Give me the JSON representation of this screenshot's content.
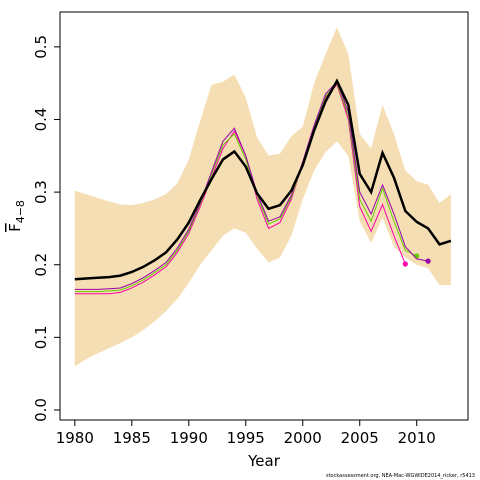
{
  "chart_data": {
    "type": "line",
    "xlabel": "Year",
    "ylabel": "F",
    "ylabel_sub": "4−8",
    "footnote": "stockassessment.org, NEA-Mac-WGWIDE2014_ricker, r5413",
    "x": [
      1980,
      1981,
      1982,
      1983,
      1984,
      1985,
      1986,
      1987,
      1988,
      1989,
      1990,
      1991,
      1992,
      1993,
      1994,
      1995,
      1996,
      1997,
      1998,
      1999,
      2000,
      2001,
      2002,
      2003,
      2004,
      2005,
      2006,
      2007,
      2008,
      2009,
      2010,
      2011,
      2012,
      2013
    ],
    "band_color": "#f5deb3",
    "band_upper": [
      0.302,
      0.297,
      0.292,
      0.287,
      0.283,
      0.282,
      0.285,
      0.29,
      0.297,
      0.312,
      0.345,
      0.398,
      0.448,
      0.452,
      0.462,
      0.43,
      0.375,
      0.35,
      0.353,
      0.377,
      0.39,
      0.45,
      0.49,
      0.527,
      0.49,
      0.38,
      0.36,
      0.42,
      0.38,
      0.33,
      0.315,
      0.31,
      0.285,
      0.297
    ],
    "band_lower": [
      0.06,
      0.07,
      0.078,
      0.085,
      0.092,
      0.1,
      0.11,
      0.122,
      0.136,
      0.153,
      0.175,
      0.2,
      0.22,
      0.24,
      0.25,
      0.244,
      0.222,
      0.203,
      0.21,
      0.24,
      0.29,
      0.33,
      0.355,
      0.37,
      0.35,
      0.26,
      0.23,
      0.265,
      0.225,
      0.21,
      0.2,
      0.195,
      0.172,
      0.172
    ],
    "series": [
      {
        "color": "#ff00aa",
        "values": [
          0.16,
          0.16,
          0.16,
          0.16,
          0.162,
          0.168,
          0.176,
          0.186,
          0.197,
          0.217,
          0.243,
          0.28,
          0.32,
          0.36,
          0.384,
          0.35,
          0.29,
          0.25,
          0.258,
          0.29,
          0.34,
          0.39,
          0.43,
          0.448,
          0.4,
          0.28,
          0.246,
          0.283,
          0.24,
          0.201,
          null,
          null,
          null,
          null
        ]
      },
      {
        "color": "#66cc00",
        "values": [
          0.163,
          0.163,
          0.163,
          0.164,
          0.165,
          0.171,
          0.179,
          0.189,
          0.2,
          0.22,
          0.246,
          0.283,
          0.325,
          0.365,
          0.38,
          0.345,
          0.295,
          0.256,
          0.263,
          0.293,
          0.34,
          0.39,
          0.432,
          0.45,
          0.405,
          0.29,
          0.26,
          0.305,
          0.26,
          0.22,
          0.212,
          null,
          null,
          null
        ]
      },
      {
        "color": "#9900aa",
        "values": [
          0.166,
          0.166,
          0.166,
          0.167,
          0.168,
          0.174,
          0.182,
          0.192,
          0.203,
          0.223,
          0.249,
          0.285,
          0.328,
          0.37,
          0.388,
          0.35,
          0.298,
          0.26,
          0.266,
          0.296,
          0.342,
          0.392,
          0.435,
          0.452,
          0.41,
          0.3,
          0.27,
          0.31,
          0.27,
          0.225,
          0.208,
          0.205,
          null,
          null
        ]
      },
      {
        "color": "#000000",
        "values": [
          0.18,
          0.181,
          0.182,
          0.183,
          0.185,
          0.19,
          0.197,
          0.206,
          0.217,
          0.235,
          0.258,
          0.289,
          0.318,
          0.345,
          0.356,
          0.335,
          0.298,
          0.277,
          0.282,
          0.302,
          0.337,
          0.385,
          0.425,
          0.453,
          0.42,
          0.325,
          0.3,
          0.354,
          0.32,
          0.274,
          0.259,
          0.25,
          0.228,
          0.233
        ]
      }
    ],
    "xlim": [
      1978.7,
      2014.5
    ],
    "ylim": [
      -0.0138,
      0.548
    ],
    "xticks": [
      1980,
      1985,
      1990,
      1995,
      2000,
      2005,
      2010
    ],
    "yticks": [
      {
        "value": 0,
        "label": "0.0"
      },
      {
        "value": 0.1,
        "label": "0.1"
      },
      {
        "value": 0.2,
        "label": "0.2"
      },
      {
        "value": 0.3,
        "label": "0.3"
      },
      {
        "value": 0.4,
        "label": "0.4"
      },
      {
        "value": 0.5,
        "label": "0.5"
      }
    ]
  }
}
